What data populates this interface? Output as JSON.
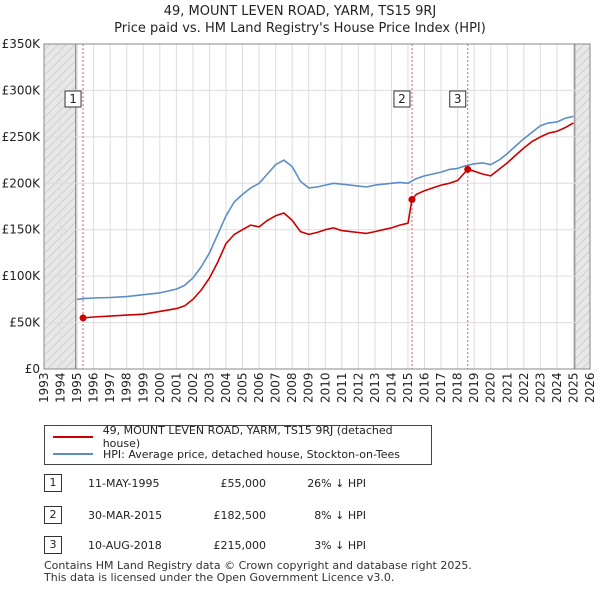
{
  "chart_data": {
    "type": "line",
    "title": "49, MOUNT LEVEN ROAD, YARM, TS15 9RJ",
    "subtitle": "Price paid vs. HM Land Registry's House Price Index (HPI)",
    "xlim": [
      1993,
      2026
    ],
    "ylim": [
      0,
      350000
    ],
    "x_ticks": [
      "1993",
      "1994",
      "1995",
      "1996",
      "1997",
      "1998",
      "1999",
      "2000",
      "2001",
      "2002",
      "2003",
      "2004",
      "2005",
      "2006",
      "2007",
      "2008",
      "2009",
      "2010",
      "2011",
      "2012",
      "2013",
      "2014",
      "2015",
      "2016",
      "2017",
      "2018",
      "2019",
      "2020",
      "2021",
      "2022",
      "2023",
      "2024",
      "2025",
      "2026"
    ],
    "y_ticks": [
      {
        "value": 0,
        "label": "£0"
      },
      {
        "value": 50000,
        "label": "£50K"
      },
      {
        "value": 100000,
        "label": "£100K"
      },
      {
        "value": 150000,
        "label": "£150K"
      },
      {
        "value": 200000,
        "label": "£200K"
      },
      {
        "value": 250000,
        "label": "£250K"
      },
      {
        "value": 300000,
        "label": "£300K"
      },
      {
        "value": 350000,
        "label": "£350K"
      }
    ],
    "grid": true,
    "shaded_ranges": [
      [
        1993,
        1994.92
      ],
      [
        2025.08,
        2026
      ]
    ],
    "series": [
      {
        "name": "49, MOUNT LEVEN ROAD, YARM, TS15 9RJ (detached house)",
        "color": "#cc0000",
        "x": [
          1995.36,
          1996.0,
          1997.0,
          1998.0,
          1999.0,
          2000.0,
          2001.0,
          2001.5,
          2002.0,
          2002.5,
          2003.0,
          2003.5,
          2004.0,
          2004.5,
          2005.0,
          2005.5,
          2006.0,
          2006.5,
          2007.0,
          2007.5,
          2008.0,
          2008.5,
          2009.0,
          2009.5,
          2010.0,
          2010.5,
          2011.0,
          2011.5,
          2012.0,
          2012.5,
          2013.0,
          2013.5,
          2014.0,
          2014.5,
          2015.0,
          2015.24,
          2015.5,
          2016.0,
          2016.5,
          2017.0,
          2017.5,
          2018.0,
          2018.61,
          2019.0,
          2019.5,
          2020.0,
          2020.5,
          2021.0,
          2021.5,
          2022.0,
          2022.5,
          2023.0,
          2023.5,
          2024.0,
          2024.5,
          2025.0
        ],
        "y": [
          55000,
          56000,
          57000,
          58000,
          59000,
          62000,
          65000,
          68000,
          75000,
          85000,
          98000,
          115000,
          135000,
          145000,
          150000,
          155000,
          153000,
          160000,
          165000,
          168000,
          160000,
          148000,
          145000,
          147000,
          150000,
          152000,
          149000,
          148000,
          147000,
          146000,
          148000,
          150000,
          152000,
          155000,
          157000,
          182500,
          188000,
          192000,
          195000,
          198000,
          200000,
          203000,
          215000,
          213000,
          210000,
          208000,
          215000,
          222000,
          230000,
          238000,
          245000,
          250000,
          254000,
          256000,
          260000,
          265000
        ]
      },
      {
        "name": "HPI: Average price, detached house, Stockton-on-Tees",
        "color": "#5b8ec6",
        "x": [
          1995.0,
          1995.5,
          1996.0,
          1997.0,
          1998.0,
          1999.0,
          2000.0,
          2001.0,
          2001.5,
          2002.0,
          2002.5,
          2003.0,
          2003.5,
          2004.0,
          2004.5,
          2005.0,
          2005.5,
          2006.0,
          2006.5,
          2007.0,
          2007.5,
          2008.0,
          2008.5,
          2009.0,
          2009.5,
          2010.0,
          2010.5,
          2011.0,
          2011.5,
          2012.0,
          2012.5,
          2013.0,
          2013.5,
          2014.0,
          2014.5,
          2015.0,
          2015.5,
          2016.0,
          2016.5,
          2017.0,
          2017.5,
          2018.0,
          2018.5,
          2019.0,
          2019.5,
          2020.0,
          2020.5,
          2021.0,
          2021.5,
          2022.0,
          2022.5,
          2023.0,
          2023.5,
          2024.0,
          2024.5,
          2025.0
        ],
        "y": [
          75000,
          76000,
          76500,
          77000,
          78000,
          80000,
          82000,
          86000,
          90000,
          98000,
          110000,
          125000,
          145000,
          165000,
          180000,
          188000,
          195000,
          200000,
          210000,
          220000,
          225000,
          218000,
          202000,
          195000,
          196000,
          198000,
          200000,
          199000,
          198000,
          197000,
          196000,
          198000,
          199000,
          200000,
          201000,
          200000,
          205000,
          208000,
          210000,
          212000,
          215000,
          216000,
          219000,
          221000,
          222000,
          220000,
          225000,
          232000,
          240000,
          248000,
          255000,
          262000,
          265000,
          266000,
          270000,
          272000
        ]
      }
    ],
    "sales": [
      {
        "label": "1",
        "x": 1995.36,
        "y": 55000
      },
      {
        "label": "2",
        "x": 2015.24,
        "y": 182500
      },
      {
        "label": "3",
        "x": 2018.61,
        "y": 215000
      }
    ]
  },
  "legend": {
    "items": [
      {
        "label": "49, MOUNT LEVEN ROAD, YARM, TS15 9RJ (detached house)",
        "color": "#cc0000"
      },
      {
        "label": "HPI: Average price, detached house, Stockton-on-Tees",
        "color": "#5b8ec6"
      }
    ]
  },
  "sales_table": [
    {
      "label": "1",
      "date": "11-MAY-1995",
      "price": "£55,000",
      "hpi": "26% ↓ HPI"
    },
    {
      "label": "2",
      "date": "30-MAR-2015",
      "price": "£182,500",
      "hpi": "8% ↓ HPI"
    },
    {
      "label": "3",
      "date": "10-AUG-2018",
      "price": "£215,000",
      "hpi": "3% ↓ HPI"
    }
  ],
  "footer": {
    "line1": "Contains HM Land Registry data © Crown copyright and database right 2025.",
    "line2": "This data is licensed under the Open Government Licence v3.0."
  }
}
